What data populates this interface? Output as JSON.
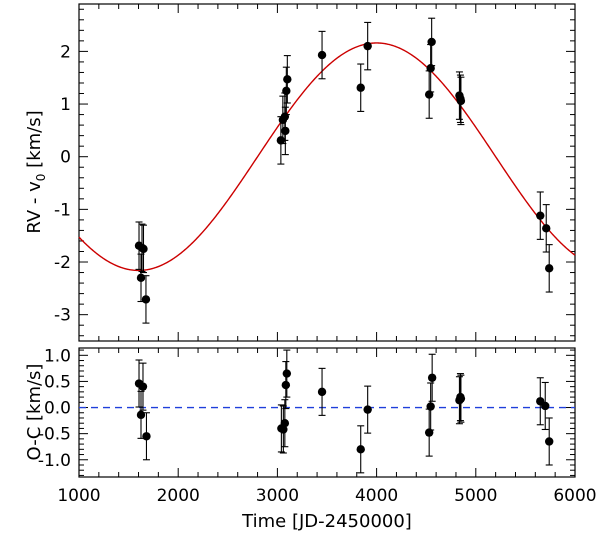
{
  "chart_data": [
    {
      "type": "scatter",
      "panel": "top",
      "ylabel_main": "RV - v",
      "ylabel_sub": "0",
      "ylabel_unit": " [km/s]",
      "xlim": [
        1000,
        6000
      ],
      "ylim": [
        -3.5,
        2.9
      ],
      "x_ticks": [
        1000,
        2000,
        3000,
        4000,
        5000,
        6000
      ],
      "y_ticks": [
        -3,
        -2,
        -1,
        0,
        1,
        2
      ],
      "y_tick_labels": [
        "-3",
        "-2",
        "-1",
        "0",
        "1",
        "2"
      ],
      "model_color": "#cc0000",
      "model": {
        "amplitude": 2.16,
        "offset": 0.0,
        "phase_peak": 4000,
        "period": 4800
      },
      "points": [
        {
          "x": 1605,
          "y": -1.69,
          "err": 0.45
        },
        {
          "x": 1625,
          "y": -2.3,
          "err": 0.45
        },
        {
          "x": 1635,
          "y": -1.73,
          "err": 0.45
        },
        {
          "x": 1650,
          "y": -1.75,
          "err": 0.45
        },
        {
          "x": 1675,
          "y": -2.71,
          "err": 0.45
        },
        {
          "x": 3035,
          "y": 0.31,
          "err": 0.45
        },
        {
          "x": 3055,
          "y": 0.7,
          "err": 0.45
        },
        {
          "x": 3075,
          "y": 0.76,
          "err": 0.45
        },
        {
          "x": 3080,
          "y": 0.49,
          "err": 0.45
        },
        {
          "x": 3090,
          "y": 1.25,
          "err": 0.45
        },
        {
          "x": 3100,
          "y": 1.47,
          "err": 0.45
        },
        {
          "x": 3450,
          "y": 1.93,
          "err": 0.45
        },
        {
          "x": 3840,
          "y": 1.31,
          "err": 0.45
        },
        {
          "x": 3910,
          "y": 2.1,
          "err": 0.45
        },
        {
          "x": 4530,
          "y": 1.18,
          "err": 0.45
        },
        {
          "x": 4545,
          "y": 1.68,
          "err": 0.45
        },
        {
          "x": 4555,
          "y": 2.18,
          "err": 0.45
        },
        {
          "x": 4835,
          "y": 1.16,
          "err": 0.45
        },
        {
          "x": 4845,
          "y": 1.1,
          "err": 0.45
        },
        {
          "x": 4850,
          "y": 1.06,
          "err": 0.45
        },
        {
          "x": 5650,
          "y": -1.12,
          "err": 0.45
        },
        {
          "x": 5710,
          "y": -1.36,
          "err": 0.45
        },
        {
          "x": 5740,
          "y": -2.12,
          "err": 0.45
        }
      ]
    },
    {
      "type": "scatter",
      "panel": "bottom",
      "ylabel": "O-C [km/s]",
      "xlabel": "Time [JD-2450000]",
      "xlim": [
        1000,
        6000
      ],
      "ylim": [
        -1.33,
        1.14
      ],
      "x_ticks": [
        1000,
        2000,
        3000,
        4000,
        5000,
        6000
      ],
      "x_tick_labels": [
        "1000",
        "2000",
        "3000",
        "4000",
        "5000",
        "6000"
      ],
      "y_ticks": [
        -1.0,
        -0.5,
        0.0,
        0.5,
        1.0
      ],
      "y_tick_labels": [
        "-1.0",
        "-0.5",
        "0.0",
        "0.5",
        "1.0"
      ],
      "zero_line_color": "#1f3fdb",
      "points": [
        {
          "x": 1605,
          "y": 0.46,
          "err": 0.45
        },
        {
          "x": 1625,
          "y": -0.14,
          "err": 0.45
        },
        {
          "x": 1645,
          "y": 0.4,
          "err": 0.45
        },
        {
          "x": 1680,
          "y": -0.55,
          "err": 0.45
        },
        {
          "x": 3040,
          "y": -0.4,
          "err": 0.45
        },
        {
          "x": 3060,
          "y": -0.42,
          "err": 0.45
        },
        {
          "x": 3075,
          "y": -0.3,
          "err": 0.45
        },
        {
          "x": 3085,
          "y": 0.43,
          "err": 0.45
        },
        {
          "x": 3095,
          "y": 0.65,
          "err": 0.45
        },
        {
          "x": 3450,
          "y": 0.3,
          "err": 0.45
        },
        {
          "x": 3840,
          "y": -0.8,
          "err": 0.45
        },
        {
          "x": 3910,
          "y": -0.04,
          "err": 0.45
        },
        {
          "x": 4530,
          "y": -0.48,
          "err": 0.45
        },
        {
          "x": 4545,
          "y": 0.02,
          "err": 0.45
        },
        {
          "x": 4560,
          "y": 0.57,
          "err": 0.45
        },
        {
          "x": 4835,
          "y": 0.14,
          "err": 0.45
        },
        {
          "x": 4845,
          "y": 0.2,
          "err": 0.45
        },
        {
          "x": 4850,
          "y": 0.17,
          "err": 0.45
        },
        {
          "x": 5650,
          "y": 0.12,
          "err": 0.45
        },
        {
          "x": 5700,
          "y": 0.03,
          "err": 0.45
        },
        {
          "x": 5740,
          "y": -0.65,
          "err": 0.45
        }
      ]
    }
  ]
}
